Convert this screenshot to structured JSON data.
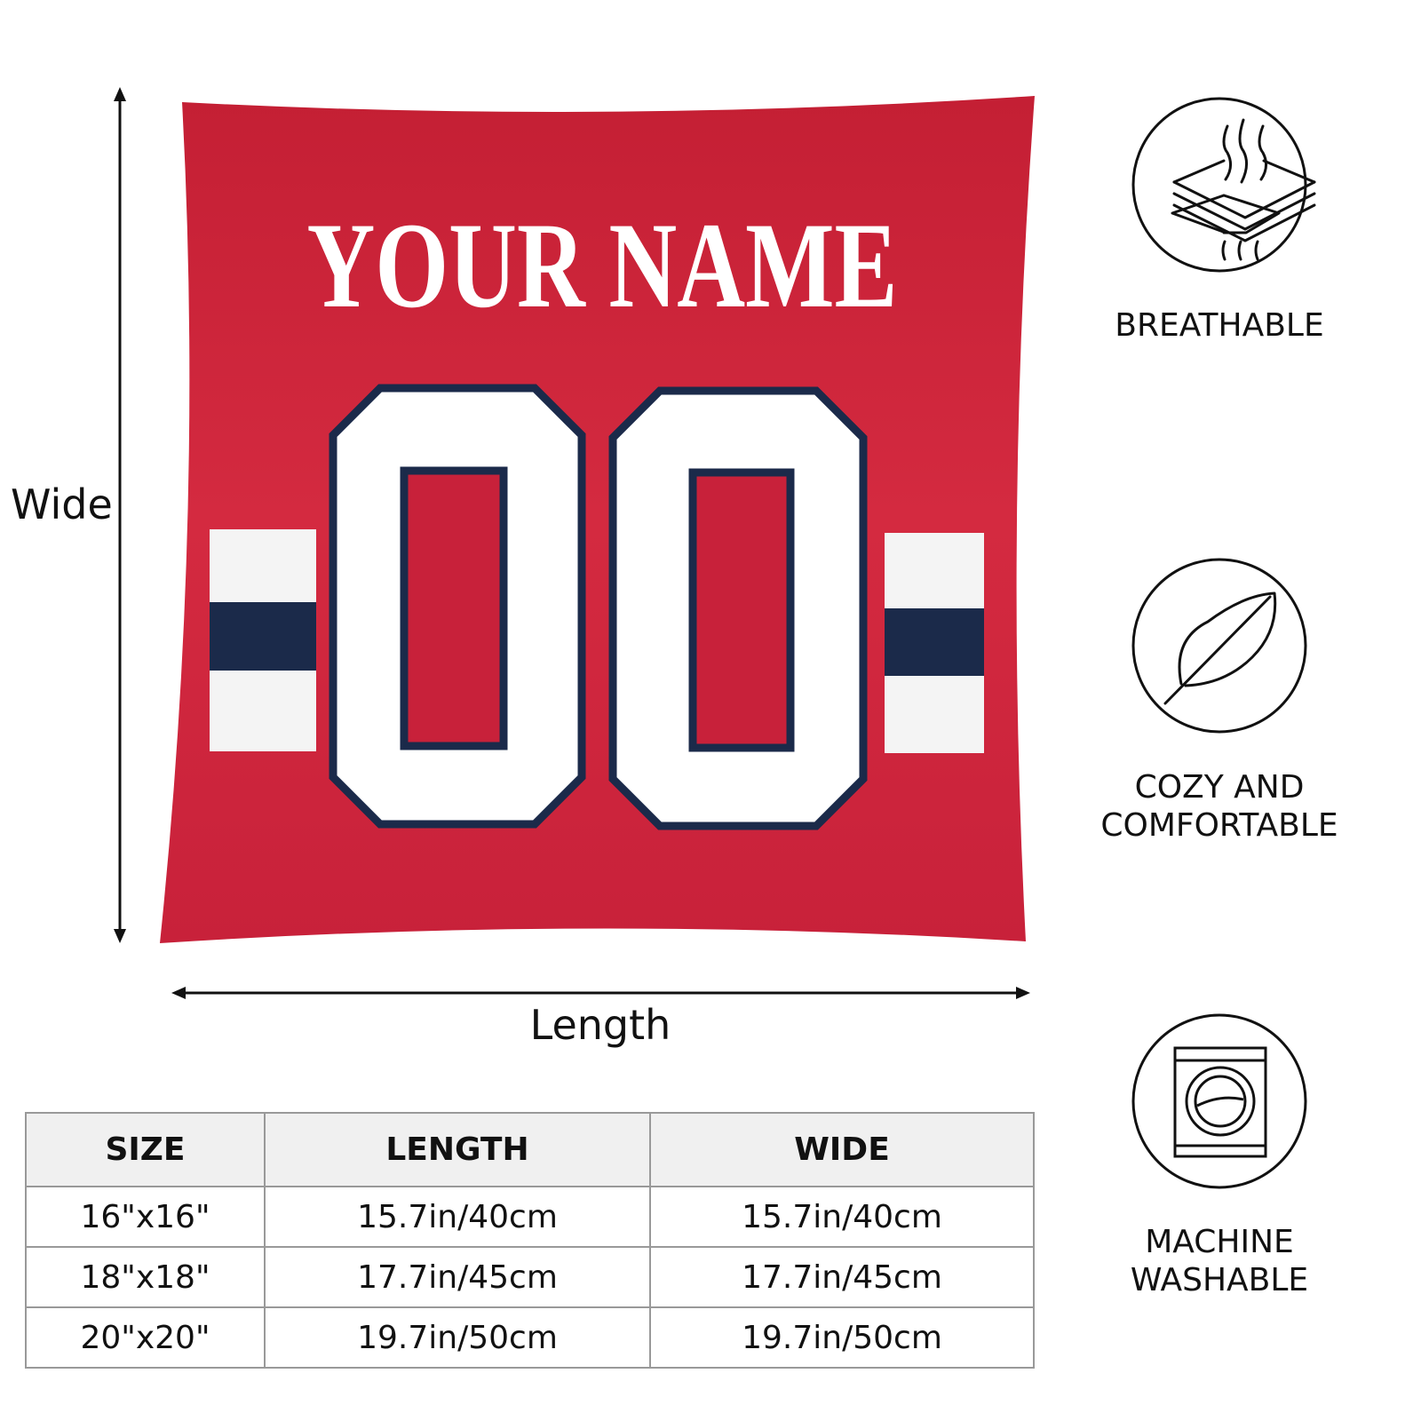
{
  "colors": {
    "jersey_red": "#c8213a",
    "navy": "#1b2a4a",
    "white": "#ffffff",
    "header_gray": "#f0f0f0"
  },
  "pillow": {
    "name_text": "YOUR NAME",
    "number_text": "00"
  },
  "dimensions": {
    "vertical_label": "Wide",
    "horizontal_label": "Length"
  },
  "size_table": {
    "headers": [
      "SIZE",
      "LENGTH",
      "WIDE"
    ],
    "rows": [
      [
        "16\"x16\"",
        "15.7in/40cm",
        "15.7in/40cm"
      ],
      [
        "18\"x18\"",
        "17.7in/45cm",
        "17.7in/45cm"
      ],
      [
        "20\"x20\"",
        "19.7in/50cm",
        "19.7in/50cm"
      ]
    ]
  },
  "features": [
    {
      "icon": "breathable-layers-icon",
      "lines": [
        "BREATHABLE"
      ]
    },
    {
      "icon": "feather-icon",
      "lines": [
        "COZY AND",
        "COMFORTABLE"
      ]
    },
    {
      "icon": "washing-machine-icon",
      "lines": [
        "MACHINE",
        "WASHABLE"
      ]
    }
  ]
}
